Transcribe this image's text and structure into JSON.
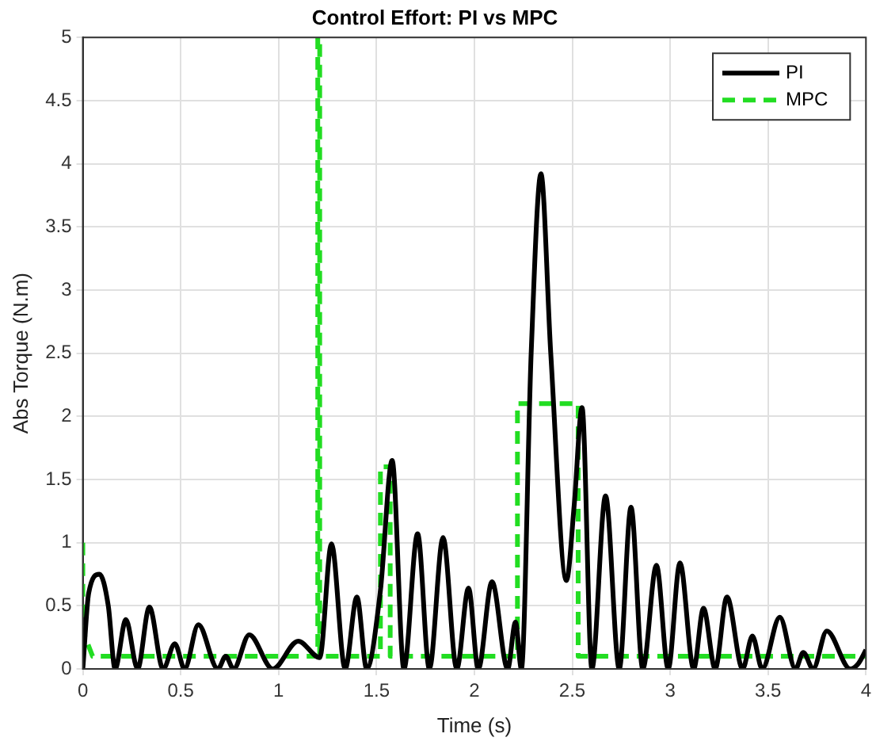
{
  "chart_data": {
    "type": "line",
    "title": "Control Effort: PI vs MPC",
    "xlabel": "Time (s)",
    "ylabel": "Abs Torque (N.m)",
    "xlim": [
      0,
      4
    ],
    "ylim": [
      0,
      5
    ],
    "xticks": [
      0,
      0.5,
      1,
      1.5,
      2,
      2.5,
      3,
      3.5,
      4
    ],
    "yticks": [
      0,
      0.5,
      1,
      1.5,
      2,
      2.5,
      3,
      3.5,
      4,
      4.5,
      5
    ],
    "grid": true,
    "legend": "top right",
    "marker": "none",
    "series": [
      {
        "name": "PI",
        "color": "#000000",
        "line_style": "solid",
        "x": [
          0,
          0.03,
          0.085,
          0.13,
          0.165,
          0.22,
          0.28,
          0.34,
          0.41,
          0.47,
          0.52,
          0.59,
          0.69,
          0.73,
          0.77,
          0.85,
          0.97,
          1.1,
          1.21,
          1.27,
          1.34,
          1.4,
          1.45,
          1.52,
          1.58,
          1.64,
          1.71,
          1.77,
          1.84,
          1.91,
          1.97,
          2.02,
          2.09,
          2.17,
          2.21,
          2.24,
          2.29,
          2.34,
          2.39,
          2.47,
          2.51,
          2.55,
          2.6,
          2.67,
          2.74,
          2.8,
          2.86,
          2.93,
          2.99,
          3.05,
          3.12,
          3.17,
          3.23,
          3.29,
          3.37,
          3.42,
          3.47,
          3.56,
          3.64,
          3.68,
          3.73,
          3.8,
          3.92,
          3.96,
          4
        ],
        "values": [
          0,
          0.6,
          0.75,
          0.5,
          0,
          0.39,
          0,
          0.49,
          0,
          0.2,
          0,
          0.35,
          0,
          0.1,
          0,
          0.27,
          0,
          0.22,
          0.09,
          0.99,
          0,
          0.57,
          0,
          0.62,
          1.65,
          0,
          1.07,
          0,
          1.04,
          0,
          0.64,
          0,
          0.69,
          0,
          0.37,
          0,
          2.5,
          3.92,
          2.5,
          0.7,
          1.3,
          2.07,
          0,
          1.37,
          0,
          1.28,
          0,
          0.82,
          0,
          0.84,
          0,
          0.48,
          0,
          0.57,
          0,
          0.26,
          0,
          0.41,
          0,
          0.13,
          0,
          0.3,
          0,
          0.04,
          0.15
        ]
      },
      {
        "name": "MPC",
        "color": "#22dd22",
        "line_style": "dashed",
        "x": [
          0,
          0,
          0.05,
          1.2,
          1.2,
          1.21,
          1.21,
          1.52,
          1.52,
          1.57,
          1.57,
          2.22,
          2.22,
          2.53,
          2.53,
          4
        ],
        "values": [
          1,
          0.3,
          0.1,
          0.1,
          5,
          5,
          0.1,
          0.1,
          1.6,
          1.6,
          0.1,
          0.1,
          2.1,
          2.1,
          0.1,
          0.1
        ]
      }
    ]
  }
}
